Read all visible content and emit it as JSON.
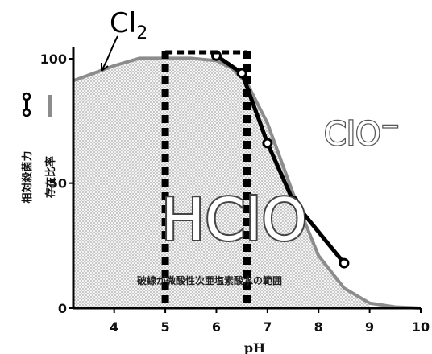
{
  "chart_data": {
    "type": "line",
    "xlabel": "pH",
    "ylabel_parts": [
      "相対殺菌力",
      "存在比率"
    ],
    "xlim": [
      3.2,
      10
    ],
    "ylim": [
      0,
      103
    ],
    "x_ticks": [
      4,
      5,
      6,
      7,
      8,
      9,
      10
    ],
    "y_ticks": [
      0,
      50,
      100
    ],
    "series": [
      {
        "style": "thick black line with open circle markers",
        "x": [
          6.0,
          6.5,
          7.0,
          7.5,
          8.5
        ],
        "y": [
          101,
          94,
          66,
          43,
          18
        ]
      },
      {
        "style": "gray line",
        "x": [
          3.2,
          3.6,
          4.0,
          4.5,
          5.0,
          5.5,
          6.0,
          6.3,
          6.6,
          7.0,
          7.5,
          8.0,
          8.5,
          9.0,
          9.5,
          10.0
        ],
        "y": [
          91,
          94,
          97,
          100,
          100,
          100,
          99,
          96,
          90,
          74,
          46,
          21,
          8,
          2,
          0.5,
          0
        ]
      }
    ],
    "shaded_region": {
      "x": [
        3.2,
        9.0
      ]
    },
    "dotted_lines_x": [
      5.0,
      6.6
    ],
    "annotations": {
      "cl2": "Cl",
      "cl2_subscript": "2",
      "hclo": "HClO",
      "clo": "ClO",
      "clo_superscript": "−",
      "range_text": "破線が微酸性次亜塩素酸水の範囲"
    },
    "colors": {
      "bactericidal_line": "#000000",
      "ratio_line": "#8c8c8c",
      "shade": "#d9d9d9",
      "dotted": "#000000"
    }
  }
}
